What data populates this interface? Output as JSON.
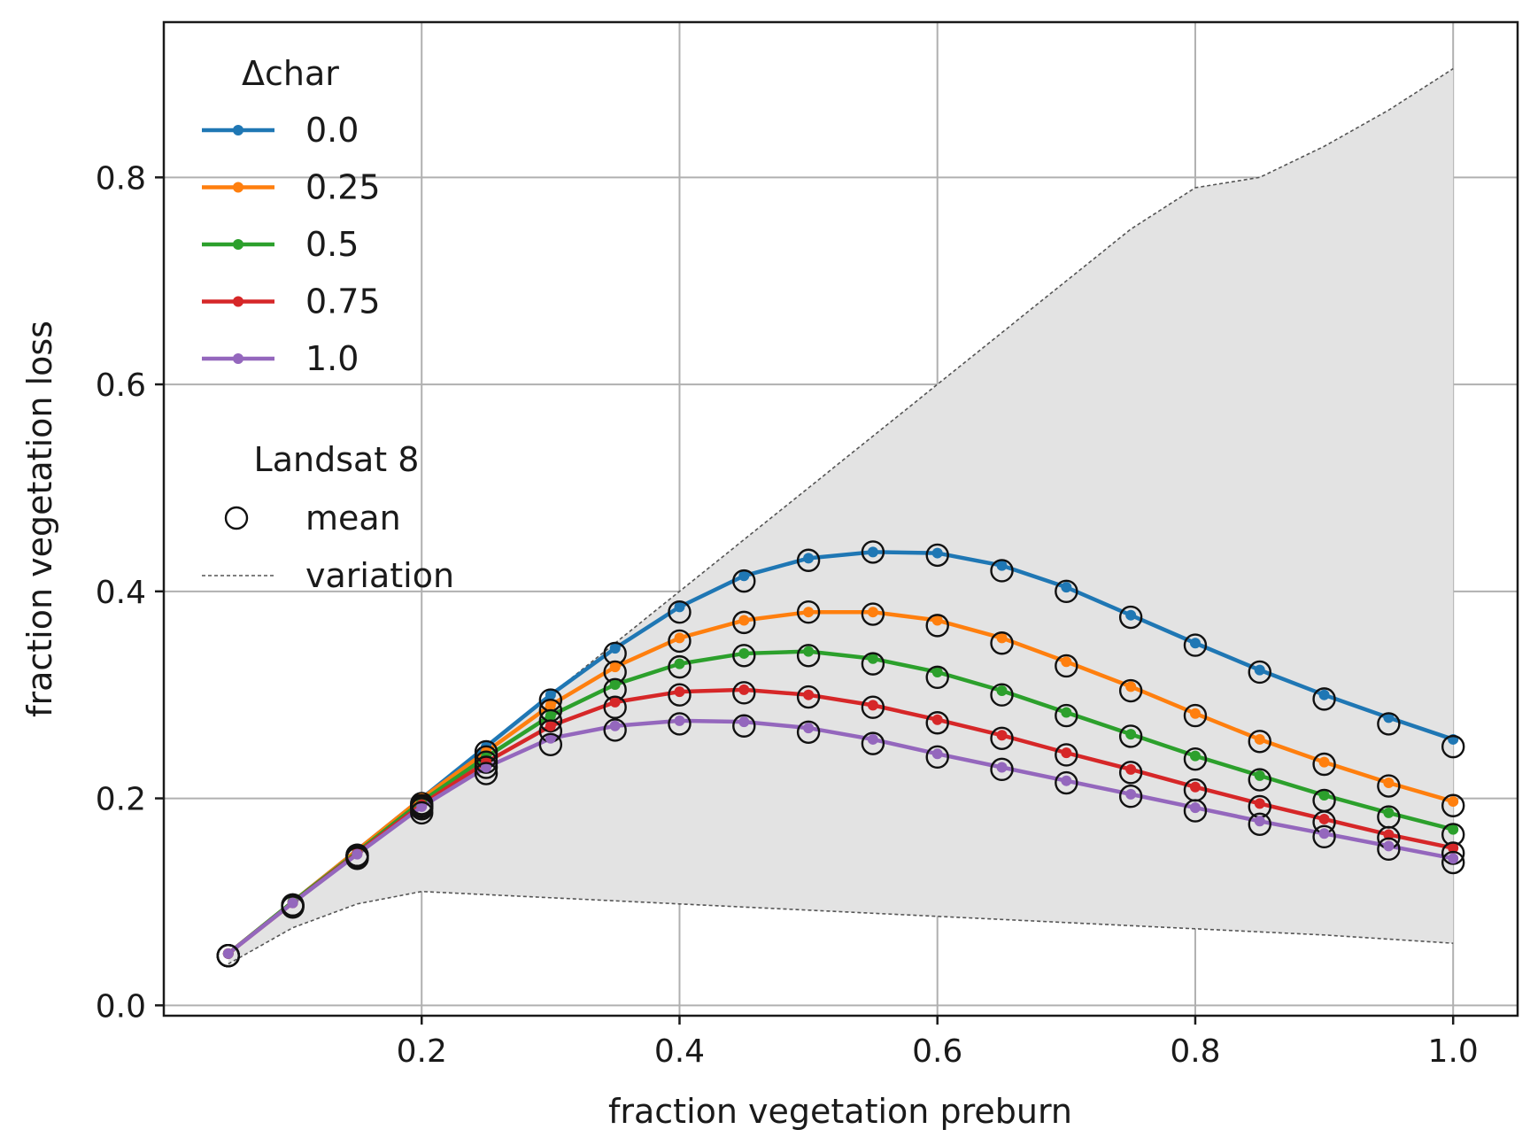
{
  "chart_data": {
    "type": "line",
    "title": "",
    "xlabel": "fraction vegetation preburn",
    "ylabel": "fraction vegetation loss",
    "xlim": [
      0.0,
      1.05
    ],
    "ylim": [
      -0.01,
      0.95
    ],
    "grid": true,
    "x_ticks": [
      0.2,
      0.4,
      0.6,
      0.8,
      1.0
    ],
    "x_tick_labels": [
      "0.2",
      "0.4",
      "0.6",
      "0.8",
      "1.0"
    ],
    "y_ticks": [
      0.0,
      0.2,
      0.4,
      0.6,
      0.8
    ],
    "y_tick_labels": [
      "0.0",
      "0.2",
      "0.4",
      "0.6",
      "0.8"
    ],
    "x": [
      0.05,
      0.1,
      0.15,
      0.2,
      0.25,
      0.3,
      0.35,
      0.4,
      0.45,
      0.5,
      0.55,
      0.6,
      0.65,
      0.7,
      0.75,
      0.8,
      0.85,
      0.9,
      0.95,
      1.0
    ],
    "legend_title": "Δchar",
    "series": [
      {
        "name": "0.0",
        "color": "#1f77b4",
        "values": [
          0.05,
          0.1,
          0.15,
          0.2,
          0.25,
          0.3,
          0.345,
          0.385,
          0.415,
          0.432,
          0.438,
          0.437,
          0.425,
          0.404,
          0.377,
          0.35,
          0.324,
          0.3,
          0.278,
          0.257
        ],
        "mean": [
          0.048,
          0.097,
          0.145,
          0.195,
          0.245,
          0.295,
          0.34,
          0.38,
          0.41,
          0.43,
          0.438,
          0.435,
          0.42,
          0.4,
          0.375,
          0.348,
          0.322,
          0.296,
          0.272,
          0.25
        ]
      },
      {
        "name": "0.25",
        "color": "#ff7f0e",
        "values": [
          0.05,
          0.1,
          0.15,
          0.2,
          0.245,
          0.29,
          0.327,
          0.355,
          0.372,
          0.38,
          0.38,
          0.372,
          0.355,
          0.332,
          0.308,
          0.282,
          0.257,
          0.235,
          0.215,
          0.197
        ],
        "mean": [
          0.048,
          0.097,
          0.145,
          0.193,
          0.24,
          0.285,
          0.322,
          0.352,
          0.37,
          0.38,
          0.378,
          0.367,
          0.35,
          0.328,
          0.304,
          0.28,
          0.255,
          0.233,
          0.212,
          0.193
        ]
      },
      {
        "name": "0.5",
        "color": "#2ca02c",
        "values": [
          0.05,
          0.1,
          0.148,
          0.197,
          0.24,
          0.28,
          0.31,
          0.33,
          0.34,
          0.342,
          0.335,
          0.322,
          0.304,
          0.283,
          0.262,
          0.241,
          0.222,
          0.203,
          0.186,
          0.17
        ],
        "mean": [
          0.048,
          0.096,
          0.144,
          0.192,
          0.235,
          0.275,
          0.305,
          0.327,
          0.338,
          0.338,
          0.33,
          0.317,
          0.3,
          0.28,
          0.26,
          0.238,
          0.218,
          0.198,
          0.182,
          0.165
        ]
      },
      {
        "name": "0.75",
        "color": "#d62728",
        "values": [
          0.05,
          0.099,
          0.147,
          0.194,
          0.235,
          0.27,
          0.293,
          0.303,
          0.305,
          0.3,
          0.29,
          0.276,
          0.261,
          0.244,
          0.228,
          0.211,
          0.195,
          0.18,
          0.165,
          0.152
        ],
        "mean": [
          0.048,
          0.096,
          0.143,
          0.19,
          0.23,
          0.265,
          0.288,
          0.3,
          0.302,
          0.298,
          0.288,
          0.273,
          0.258,
          0.242,
          0.225,
          0.208,
          0.192,
          0.177,
          0.162,
          0.147
        ]
      },
      {
        "name": "1.0",
        "color": "#9467bd",
        "values": [
          0.05,
          0.099,
          0.146,
          0.192,
          0.23,
          0.258,
          0.27,
          0.275,
          0.274,
          0.268,
          0.257,
          0.243,
          0.23,
          0.217,
          0.204,
          0.191,
          0.178,
          0.166,
          0.154,
          0.142
        ],
        "mean": [
          0.048,
          0.095,
          0.142,
          0.186,
          0.224,
          0.252,
          0.266,
          0.272,
          0.27,
          0.264,
          0.253,
          0.24,
          0.228,
          0.215,
          0.202,
          0.188,
          0.175,
          0.163,
          0.151,
          0.138
        ]
      }
    ],
    "variation_band": {
      "x": [
        0.05,
        0.1,
        0.15,
        0.2,
        0.25,
        0.3,
        0.35,
        0.4,
        0.45,
        0.5,
        0.55,
        0.6,
        0.65,
        0.7,
        0.75,
        0.8,
        0.85,
        0.9,
        0.95,
        1.0
      ],
      "upper": [
        0.05,
        0.1,
        0.15,
        0.2,
        0.25,
        0.3,
        0.35,
        0.4,
        0.45,
        0.5,
        0.55,
        0.6,
        0.65,
        0.7,
        0.75,
        0.79,
        0.8,
        0.83,
        0.865,
        0.905
      ],
      "lower": [
        0.04,
        0.075,
        0.098,
        0.11,
        0.107,
        0.104,
        0.101,
        0.098,
        0.095,
        0.092,
        0.089,
        0.086,
        0.083,
        0.08,
        0.077,
        0.074,
        0.071,
        0.068,
        0.064,
        0.06
      ]
    },
    "legend": {
      "placement": "upper-left",
      "title": "Δchar",
      "entries": [
        "0.0",
        "0.25",
        "0.5",
        "0.75",
        "1.0"
      ],
      "secondary_title": "Landsat 8",
      "secondary_entries": [
        "mean",
        "variation"
      ]
    }
  }
}
